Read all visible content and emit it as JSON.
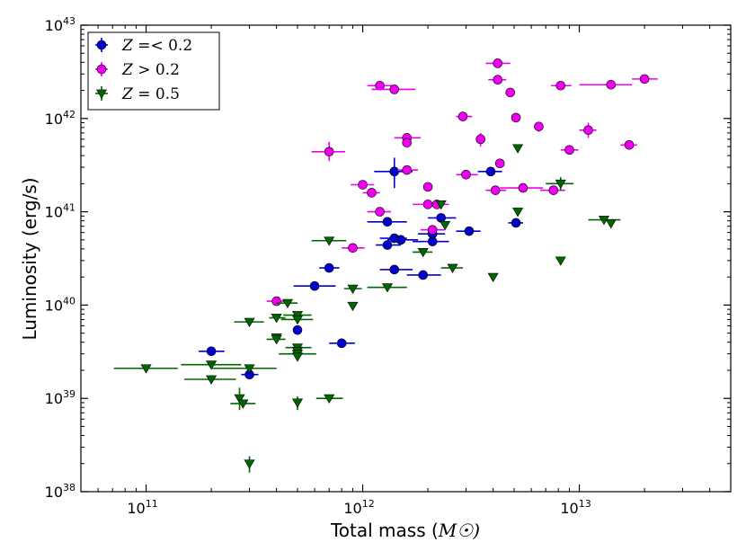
{
  "chart_data": {
    "type": "scatter",
    "xscale": "log",
    "yscale": "log",
    "xlim": [
      50000000000.0,
      50000000000000.0
    ],
    "ylim": [
      1e+38,
      1e+43
    ],
    "xlabel": "Total mass (M☉)",
    "ylabel": "Luminosity (erg/s)",
    "x_ticks": [
      {
        "value": 100000000000.0,
        "base": "10",
        "exp": "11"
      },
      {
        "value": 1000000000000.0,
        "base": "10",
        "exp": "12"
      },
      {
        "value": 10000000000000.0,
        "base": "10",
        "exp": "13"
      }
    ],
    "y_ticks": [
      {
        "value": 1e+38,
        "base": "10",
        "exp": "38"
      },
      {
        "value": 1e+39,
        "base": "10",
        "exp": "39"
      },
      {
        "value": 1e+40,
        "base": "10",
        "exp": "40"
      },
      {
        "value": 1e+41,
        "base": "10",
        "exp": "41"
      },
      {
        "value": 1e+42,
        "base": "10",
        "exp": "42"
      },
      {
        "value": 1e+43,
        "base": "10",
        "exp": "43"
      }
    ],
    "legend_position": "top-left",
    "series": [
      {
        "name": "Z =< 0.2",
        "color": "#0000cc",
        "marker": "circle",
        "points": [
          {
            "x": 200000000000.0,
            "y": 3.2e+39,
            "xlo": 175000000000.0,
            "xhi": 230000000000.0
          },
          {
            "x": 300000000000.0,
            "y": 1.8e+39,
            "xlo": 275000000000.0,
            "xhi": 330000000000.0
          },
          {
            "x": 500000000000.0,
            "y": 5.4e+39
          },
          {
            "x": 600000000000.0,
            "y": 1.6e+40,
            "xlo": 480000000000.0,
            "xhi": 750000000000.0
          },
          {
            "x": 700000000000.0,
            "y": 2.5e+40,
            "xlo": 630000000000.0,
            "xhi": 780000000000.0
          },
          {
            "x": 800000000000.0,
            "y": 3.9e+39,
            "xlo": 700000000000.0,
            "xhi": 920000000000.0
          },
          {
            "x": 1300000000000.0,
            "y": 4.4e+40,
            "xlo": 1150000000000.0,
            "xhi": 1500000000000.0
          },
          {
            "x": 1300000000000.0,
            "y": 7.8e+40,
            "xlo": 1050000000000.0,
            "xhi": 1600000000000.0
          },
          {
            "x": 1400000000000.0,
            "y": 5.2e+40,
            "xlo": 1200000000000.0,
            "xhi": 1600000000000.0
          },
          {
            "x": 1400000000000.0,
            "y": 2.7e+41,
            "xlo": 1130000000000.0,
            "xhi": 1700000000000.0,
            "ylo": 1.8e+41,
            "yhi": 3.8e+41
          },
          {
            "x": 1400000000000.0,
            "y": 2.4e+40,
            "xlo": 1200000000000.0,
            "xhi": 1700000000000.0
          },
          {
            "x": 1500000000000.0,
            "y": 5e+40,
            "xlo": 1300000000000.0,
            "xhi": 1800000000000.0
          },
          {
            "x": 1900000000000.0,
            "y": 2.1e+40,
            "xlo": 1600000000000.0,
            "xhi": 2300000000000.0
          },
          {
            "x": 2100000000000.0,
            "y": 4.8e+40,
            "xlo": 1700000000000.0,
            "xhi": 2500000000000.0
          },
          {
            "x": 2100000000000.0,
            "y": 5.8e+40,
            "xlo": 1800000000000.0,
            "xhi": 2400000000000.0
          },
          {
            "x": 2300000000000.0,
            "y": 8.6e+40,
            "xlo": 2000000000000.0,
            "xhi": 2700000000000.0
          },
          {
            "x": 3100000000000.0,
            "y": 6.2e+40,
            "xlo": 2700000000000.0,
            "xhi": 3500000000000.0
          },
          {
            "x": 3900000000000.0,
            "y": 2.7e+41,
            "xlo": 3400000000000.0,
            "xhi": 4400000000000.0
          },
          {
            "x": 5100000000000.0,
            "y": 7.6e+40,
            "xlo": 4700000000000.0,
            "xhi": 5500000000000.0
          }
        ]
      },
      {
        "name": "Z > 0.2",
        "color": "#ee00ee",
        "marker": "circle",
        "points": [
          {
            "x": 400000000000.0,
            "y": 1.1e+40,
            "xlo": 360000000000.0,
            "xhi": 450000000000.0
          },
          {
            "x": 700000000000.0,
            "y": 4.4e+41,
            "xlo": 580000000000.0,
            "xhi": 830000000000.0,
            "ylo": 3.5e+41,
            "yhi": 5.6e+41
          },
          {
            "x": 900000000000.0,
            "y": 4.1e+40,
            "xlo": 800000000000.0,
            "xhi": 1020000000000.0
          },
          {
            "x": 1000000000000.0,
            "y": 1.95e+41,
            "xlo": 880000000000.0,
            "xhi": 1130000000000.0
          },
          {
            "x": 1100000000000.0,
            "y": 1.6e+41,
            "xlo": 1000000000000.0,
            "xhi": 1200000000000.0
          },
          {
            "x": 1200000000000.0,
            "y": 1e+41,
            "xlo": 1050000000000.0,
            "xhi": 1350000000000.0
          },
          {
            "x": 1200000000000.0,
            "y": 2.25e+42,
            "xlo": 1050000000000.0,
            "xhi": 1400000000000.0
          },
          {
            "x": 1400000000000.0,
            "y": 2.05e+42,
            "xlo": 1100000000000.0,
            "xhi": 1750000000000.0
          },
          {
            "x": 1600000000000.0,
            "y": 6.2e+41,
            "xlo": 1400000000000.0,
            "xhi": 1850000000000.0
          },
          {
            "x": 1600000000000.0,
            "y": 5.5e+41
          },
          {
            "x": 1600000000000.0,
            "y": 2.8e+41,
            "xlo": 1450000000000.0,
            "xhi": 1800000000000.0
          },
          {
            "x": 2000000000000.0,
            "y": 1.85e+41
          },
          {
            "x": 2000000000000.0,
            "y": 1.2e+41,
            "xlo": 1700000000000.0,
            "xhi": 2300000000000.0
          },
          {
            "x": 2100000000000.0,
            "y": 6.4e+40,
            "xlo": 1850000000000.0,
            "xhi": 2400000000000.0
          },
          {
            "x": 2200000000000.0,
            "y": 1.2e+41,
            "xlo": 1900000000000.0,
            "xhi": 2500000000000.0
          },
          {
            "x": 2900000000000.0,
            "y": 1.05e+42,
            "xlo": 2700000000000.0,
            "xhi": 3200000000000.0
          },
          {
            "x": 3000000000000.0,
            "y": 2.5e+41,
            "xlo": 2700000000000.0,
            "xhi": 3400000000000.0
          },
          {
            "x": 3500000000000.0,
            "y": 6e+41,
            "ylo": 5e+41,
            "yhi": 7e+41
          },
          {
            "x": 4100000000000.0,
            "y": 1.7e+41,
            "xlo": 3700000000000.0,
            "xhi": 4600000000000.0
          },
          {
            "x": 4200000000000.0,
            "y": 2.6e+42,
            "xlo": 3800000000000.0,
            "xhi": 4600000000000.0
          },
          {
            "x": 4200000000000.0,
            "y": 3.9e+42,
            "xlo": 3700000000000.0,
            "xhi": 4800000000000.0
          },
          {
            "x": 4300000000000.0,
            "y": 3.3e+41
          },
          {
            "x": 4800000000000.0,
            "y": 1.9e+42
          },
          {
            "x": 5100000000000.0,
            "y": 1.02e+42
          },
          {
            "x": 5500000000000.0,
            "y": 1.8e+41,
            "xlo": 4300000000000.0,
            "xhi": 6800000000000.0
          },
          {
            "x": 6500000000000.0,
            "y": 8.2e+41,
            "ylo": 7.2e+41,
            "yhi": 9.2e+41
          },
          {
            "x": 7600000000000.0,
            "y": 1.7e+41,
            "xlo": 6600000000000.0,
            "xhi": 8600000000000.0
          },
          {
            "x": 8200000000000.0,
            "y": 2.25e+42,
            "xlo": 7400000000000.0,
            "xhi": 9200000000000.0
          },
          {
            "x": 9000000000000.0,
            "y": 4.6e+41,
            "xlo": 8200000000000.0,
            "xhi": 9900000000000.0
          },
          {
            "x": 11000000000000.0,
            "y": 7.5e+41,
            "xlo": 10000000000000.0,
            "xhi": 12000000000000.0,
            "ylo": 6.2e+41,
            "yhi": 9e+41
          },
          {
            "x": 14000000000000.0,
            "y": 2.3e+42,
            "xlo": 10000000000000.0,
            "xhi": 17500000000000.0
          },
          {
            "x": 17000000000000.0,
            "y": 5.2e+41,
            "xlo": 15500000000000.0,
            "xhi": 18500000000000.0
          },
          {
            "x": 20000000000000.0,
            "y": 2.65e+42,
            "xlo": 17500000000000.0,
            "xhi": 23000000000000.0
          }
        ]
      },
      {
        "name": "Z = 0.5",
        "color": "#006600",
        "marker": "triangle-down",
        "points": [
          {
            "x": 100000000000.0,
            "y": 2.1e+39,
            "xlo": 71000000000.0,
            "xhi": 140000000000.0
          },
          {
            "x": 200000000000.0,
            "y": 2.3e+39,
            "xlo": 145000000000.0,
            "xhi": 275000000000.0
          },
          {
            "x": 200000000000.0,
            "y": 1.6e+39,
            "xlo": 150000000000.0,
            "xhi": 260000000000.0
          },
          {
            "x": 270000000000.0,
            "y": 1e+39,
            "ylo": 7.5e+38,
            "yhi": 1.3e+39
          },
          {
            "x": 280000000000.0,
            "y": 8.8e+38,
            "xlo": 245000000000.0,
            "xhi": 320000000000.0
          },
          {
            "x": 300000000000.0,
            "y": 2.1e+39,
            "xlo": 200000000000.0,
            "xhi": 400000000000.0
          },
          {
            "x": 300000000000.0,
            "y": 2e+38,
            "ylo": 1.6e+38,
            "yhi": 2.4e+38
          },
          {
            "x": 300000000000.0,
            "y": 6.6e+39,
            "xlo": 255000000000.0,
            "xhi": 350000000000.0
          },
          {
            "x": 400000000000.0,
            "y": 7.3e+39,
            "xlo": 370000000000.0,
            "xhi": 440000000000.0
          },
          {
            "x": 400000000000.0,
            "y": 4.5e+39
          },
          {
            "x": 400000000000.0,
            "y": 4.3e+39,
            "xlo": 360000000000.0,
            "xhi": 440000000000.0
          },
          {
            "x": 450000000000.0,
            "y": 1.05e+40,
            "xlo": 400000000000.0,
            "xhi": 500000000000.0
          },
          {
            "x": 500000000000.0,
            "y": 7.8e+39,
            "xlo": 430000000000.0,
            "xhi": 580000000000.0
          },
          {
            "x": 500000000000.0,
            "y": 7e+39,
            "xlo": 420000000000.0,
            "xhi": 590000000000.0
          },
          {
            "x": 500000000000.0,
            "y": 3.5e+39,
            "xlo": 440000000000.0,
            "xhi": 580000000000.0
          },
          {
            "x": 500000000000.0,
            "y": 3.2e+39
          },
          {
            "x": 500000000000.0,
            "y": 3e+39,
            "xlo": 410000000000.0,
            "xhi": 610000000000.0
          },
          {
            "x": 500000000000.0,
            "y": 2.8e+39
          },
          {
            "x": 500000000000.0,
            "y": 9e+38,
            "ylo": 7.5e+38,
            "yhi": 1.05e+39
          },
          {
            "x": 700000000000.0,
            "y": 4.9e+40,
            "xlo": 580000000000.0,
            "xhi": 840000000000.0
          },
          {
            "x": 700000000000.0,
            "y": 1e+39,
            "xlo": 610000000000.0,
            "xhi": 810000000000.0
          },
          {
            "x": 900000000000.0,
            "y": 1.5e+40,
            "xlo": 820000000000.0,
            "xhi": 990000000000.0
          },
          {
            "x": 900000000000.0,
            "y": 9.8e+39
          },
          {
            "x": 1300000000000.0,
            "y": 1.55e+40,
            "xlo": 1050000000000.0,
            "xhi": 1600000000000.0
          },
          {
            "x": 1900000000000.0,
            "y": 3.7e+40,
            "xlo": 1700000000000.0,
            "xhi": 2100000000000.0
          },
          {
            "x": 2300000000000.0,
            "y": 1.2e+41
          },
          {
            "x": 2400000000000.0,
            "y": 7.2e+40
          },
          {
            "x": 2600000000000.0,
            "y": 2.5e+40,
            "xlo": 2300000000000.0,
            "xhi": 2900000000000.0
          },
          {
            "x": 4000000000000.0,
            "y": 2e+40
          },
          {
            "x": 5200000000000.0,
            "y": 4.8e+41
          },
          {
            "x": 5200000000000.0,
            "y": 1e+41
          },
          {
            "x": 8200000000000.0,
            "y": 2e+41,
            "xlo": 7000000000000.0,
            "xhi": 9400000000000.0,
            "ylo": 1.7e+41,
            "yhi": 2.35e+41
          },
          {
            "x": 8200000000000.0,
            "y": 3e+40
          },
          {
            "x": 13000000000000.0,
            "y": 8.2e+40,
            "xlo": 11000000000000.0,
            "xhi": 15500000000000.0
          },
          {
            "x": 14000000000000.0,
            "y": 7.5e+40
          }
        ]
      }
    ]
  }
}
